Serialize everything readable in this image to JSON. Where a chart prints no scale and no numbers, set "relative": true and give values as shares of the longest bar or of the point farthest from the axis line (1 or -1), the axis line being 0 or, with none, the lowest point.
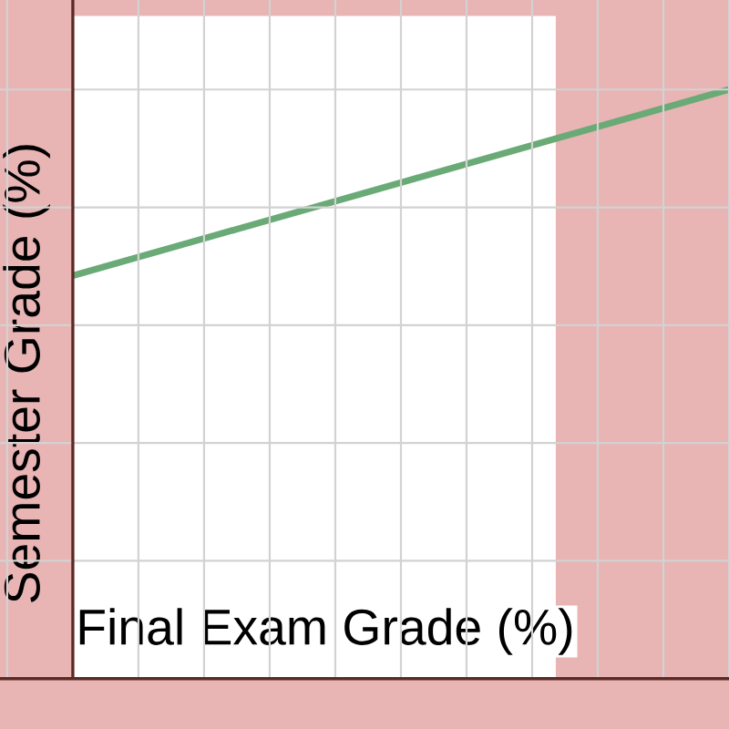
{
  "chart_data": {
    "type": "line",
    "relative": true,
    "xlabel": "Final Exam Grade (%)",
    "ylabel": "Semester Grade (%)",
    "categories": [
      null,
      null
    ],
    "series": [
      {
        "color": "#6aaa76",
        "values": [
          0.684,
          1
        ]
      }
    ],
    "grid": true
  }
}
